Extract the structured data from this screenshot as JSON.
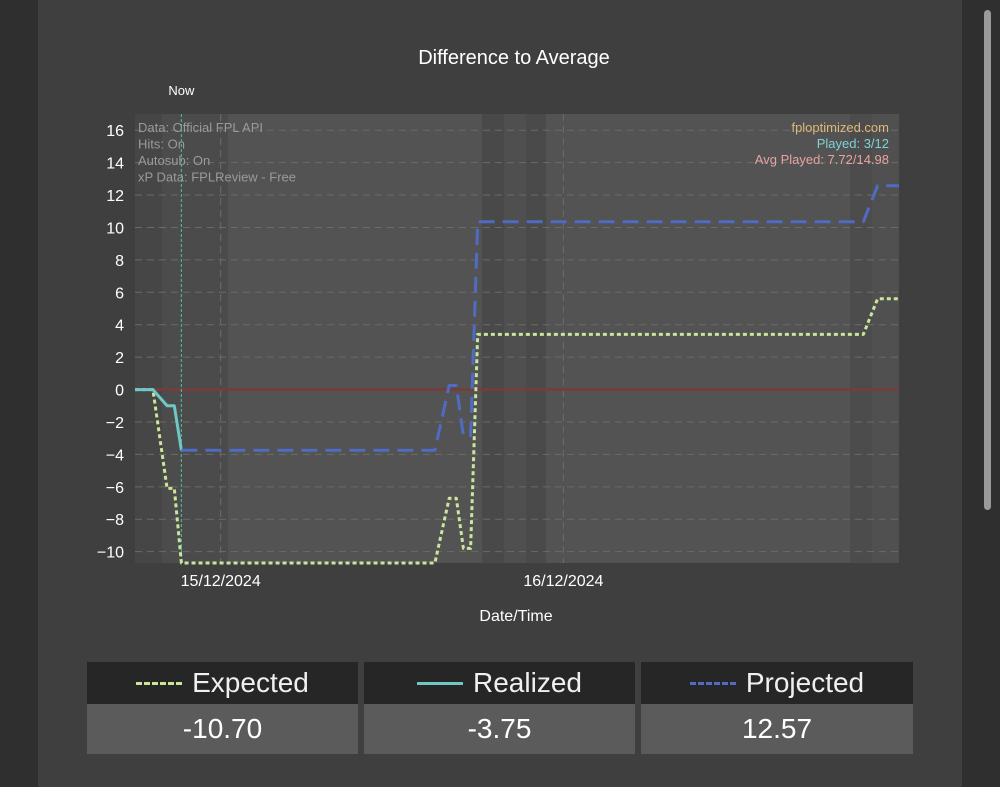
{
  "chart_data": {
    "type": "line",
    "title": "Difference to Average",
    "xlabel": "Date/Time",
    "ylabel": "",
    "ylim": [
      -10.7,
      17.0
    ],
    "yticks": [
      16,
      14,
      12,
      10,
      8,
      6,
      4,
      2,
      0,
      -2,
      -4,
      -6,
      -8,
      -10
    ],
    "ytick_labels": [
      "16",
      "14",
      "12",
      "10",
      "8",
      "6",
      "4",
      "2",
      "0",
      "−2",
      "−4",
      "−6",
      "−8",
      "−10"
    ],
    "x_range": [
      "2024-12-14T18:00",
      "2024-12-16T23:30"
    ],
    "xticks": [
      {
        "x": "2024-12-15T00:00",
        "label": "15/12/2024"
      },
      {
        "x": "2024-12-16T00:00",
        "label": "16/12/2024"
      }
    ],
    "grid": true,
    "now_marker": {
      "x": "2024-12-14T21:15",
      "label": "Now"
    },
    "annotations_left": [
      "Data: Official FPL API",
      "Hits: On",
      "Autosub: On",
      "xP Data: FPLReview - Free"
    ],
    "annotations_right": [
      {
        "text": "fploptimized.com",
        "color": "#e0b87a"
      },
      {
        "text": "Played: 3/12",
        "color": "#7fd3d6"
      },
      {
        "text": "Avg Played: 7.72/14.98",
        "color": "#e8a3a0"
      }
    ],
    "series": [
      {
        "name": "Expected",
        "color": "#cbe59c",
        "style": "dotted",
        "points": [
          [
            "2024-12-14T18:00",
            0
          ],
          [
            "2024-12-14T19:15",
            0
          ],
          [
            "2024-12-14T20:15",
            -6.1
          ],
          [
            "2024-12-14T20:45",
            -6.1
          ],
          [
            "2024-12-14T21:15",
            -10.7
          ],
          [
            "2024-12-15T15:00",
            -10.7
          ],
          [
            "2024-12-15T16:00",
            -6.7
          ],
          [
            "2024-12-15T16:30",
            -6.7
          ],
          [
            "2024-12-15T17:00",
            -9.8
          ],
          [
            "2024-12-15T17:30",
            -9.8
          ],
          [
            "2024-12-15T18:00",
            3.4
          ],
          [
            "2024-12-16T21:00",
            3.4
          ],
          [
            "2024-12-16T22:00",
            5.6
          ],
          [
            "2024-12-16T23:30",
            5.6
          ]
        ]
      },
      {
        "name": "Realized",
        "color": "#6ec8c6",
        "style": "solid",
        "points": [
          [
            "2024-12-14T18:00",
            0
          ],
          [
            "2024-12-14T19:15",
            0
          ],
          [
            "2024-12-14T20:15",
            -1.0
          ],
          [
            "2024-12-14T20:45",
            -1.0
          ],
          [
            "2024-12-14T21:15",
            -3.75
          ]
        ]
      },
      {
        "name": "Projected",
        "color": "#4f6bc2",
        "style": "dashed",
        "points": [
          [
            "2024-12-14T21:15",
            -3.75
          ],
          [
            "2024-12-15T15:00",
            -3.75
          ],
          [
            "2024-12-15T16:00",
            0.25
          ],
          [
            "2024-12-15T16:30",
            0.25
          ],
          [
            "2024-12-15T17:00",
            -2.85
          ],
          [
            "2024-12-15T17:30",
            -2.85
          ],
          [
            "2024-12-15T18:00",
            10.35
          ],
          [
            "2024-12-16T21:00",
            10.35
          ],
          [
            "2024-12-16T22:00",
            12.57
          ],
          [
            "2024-12-16T23:30",
            12.57
          ]
        ]
      }
    ],
    "zero_line_color": "#7a3b3b"
  },
  "legend": [
    {
      "name": "Expected",
      "value": "-10.70",
      "color": "#cbe59c",
      "style": "dotted"
    },
    {
      "name": "Realized",
      "value": "-3.75",
      "color": "#6ec8c6",
      "style": "solid"
    },
    {
      "name": "Projected",
      "value": "12.57",
      "color": "#4f6bc2",
      "style": "dashed"
    }
  ]
}
